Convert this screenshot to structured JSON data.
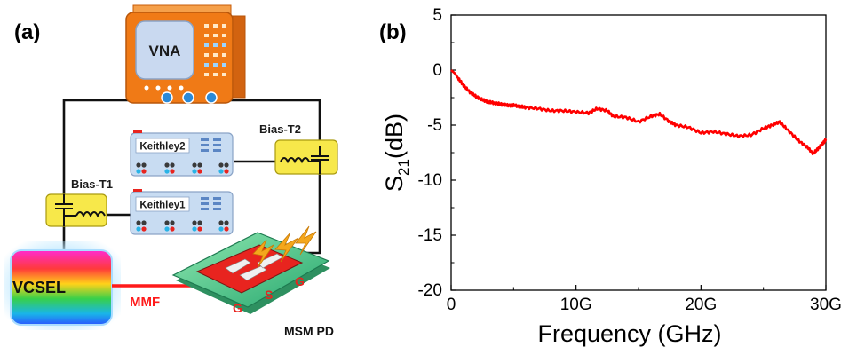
{
  "panel_a": {
    "label": "(a)",
    "vna_label": "VNA",
    "keithley2_label": "Keithley2",
    "keithley1_label": "Keithley1",
    "bias_t2_label": "Bias-T2",
    "bias_t1_label": "Bias-T1",
    "vcsel_label": "VCSEL",
    "mmf_label": "MMF",
    "mmf_color": "#ff1a1a",
    "msm_label": "MSM PD",
    "electrodes": [
      "G",
      "S",
      "G"
    ],
    "colors": {
      "vna_body": "#f07a16",
      "vna_screen": "#c9d9f0",
      "keithley_body": "#c8dcf2",
      "bias_t_box": "#f7e84a",
      "pd_substrate": "#3cc08a",
      "pd_pad": "#e8241f",
      "lightning": "#f4a71c"
    }
  },
  "panel_b": {
    "label": "(b)"
  },
  "chart_data": {
    "type": "line",
    "title": "",
    "xlabel": "Frequency (GHz)",
    "ylabel_main": "S",
    "ylabel_sub": "21",
    "ylabel_suffix": "(dB)",
    "xlim": [
      0,
      30
    ],
    "ylim": [
      -20,
      5
    ],
    "x_ticks": [
      {
        "value": 0,
        "label": "0"
      },
      {
        "value": 10,
        "label": "10G"
      },
      {
        "value": 20,
        "label": "20G"
      },
      {
        "value": 30,
        "label": "30G"
      }
    ],
    "y_ticks": [
      {
        "value": 5,
        "label": "5"
      },
      {
        "value": 0,
        "label": "0"
      },
      {
        "value": -5,
        "label": "-5"
      },
      {
        "value": -10,
        "label": "-10"
      },
      {
        "value": -15,
        "label": "-15"
      },
      {
        "value": -20,
        "label": "-20"
      }
    ],
    "grid": false,
    "series": [
      {
        "color": "#ff0000",
        "x": [
          0.0,
          0.3,
          0.6,
          1.0,
          1.5,
          2.0,
          2.5,
          3.0,
          3.5,
          4.0,
          4.5,
          5.0,
          5.5,
          6.0,
          7.0,
          8.0,
          9.0,
          10.0,
          11.0,
          11.7,
          12.5,
          13.0,
          14.0,
          15.0,
          16.0,
          16.7,
          17.5,
          18.0,
          19.0,
          20.0,
          21.0,
          22.0,
          23.0,
          24.0,
          25.0,
          25.7,
          26.3,
          27.0,
          27.8,
          28.5,
          29.0,
          29.4,
          29.8,
          30.0
        ],
        "y": [
          0.0,
          -0.3,
          -0.8,
          -1.4,
          -2.0,
          -2.4,
          -2.7,
          -2.9,
          -3.0,
          -3.1,
          -3.2,
          -3.2,
          -3.3,
          -3.4,
          -3.5,
          -3.7,
          -3.7,
          -3.8,
          -3.9,
          -3.5,
          -3.7,
          -4.2,
          -4.3,
          -4.7,
          -4.2,
          -4.0,
          -4.7,
          -5.0,
          -5.2,
          -5.7,
          -5.6,
          -5.8,
          -6.0,
          -5.9,
          -5.3,
          -5.0,
          -4.7,
          -5.5,
          -6.4,
          -7.0,
          -7.6,
          -7.1,
          -6.6,
          -6.3
        ]
      }
    ]
  }
}
